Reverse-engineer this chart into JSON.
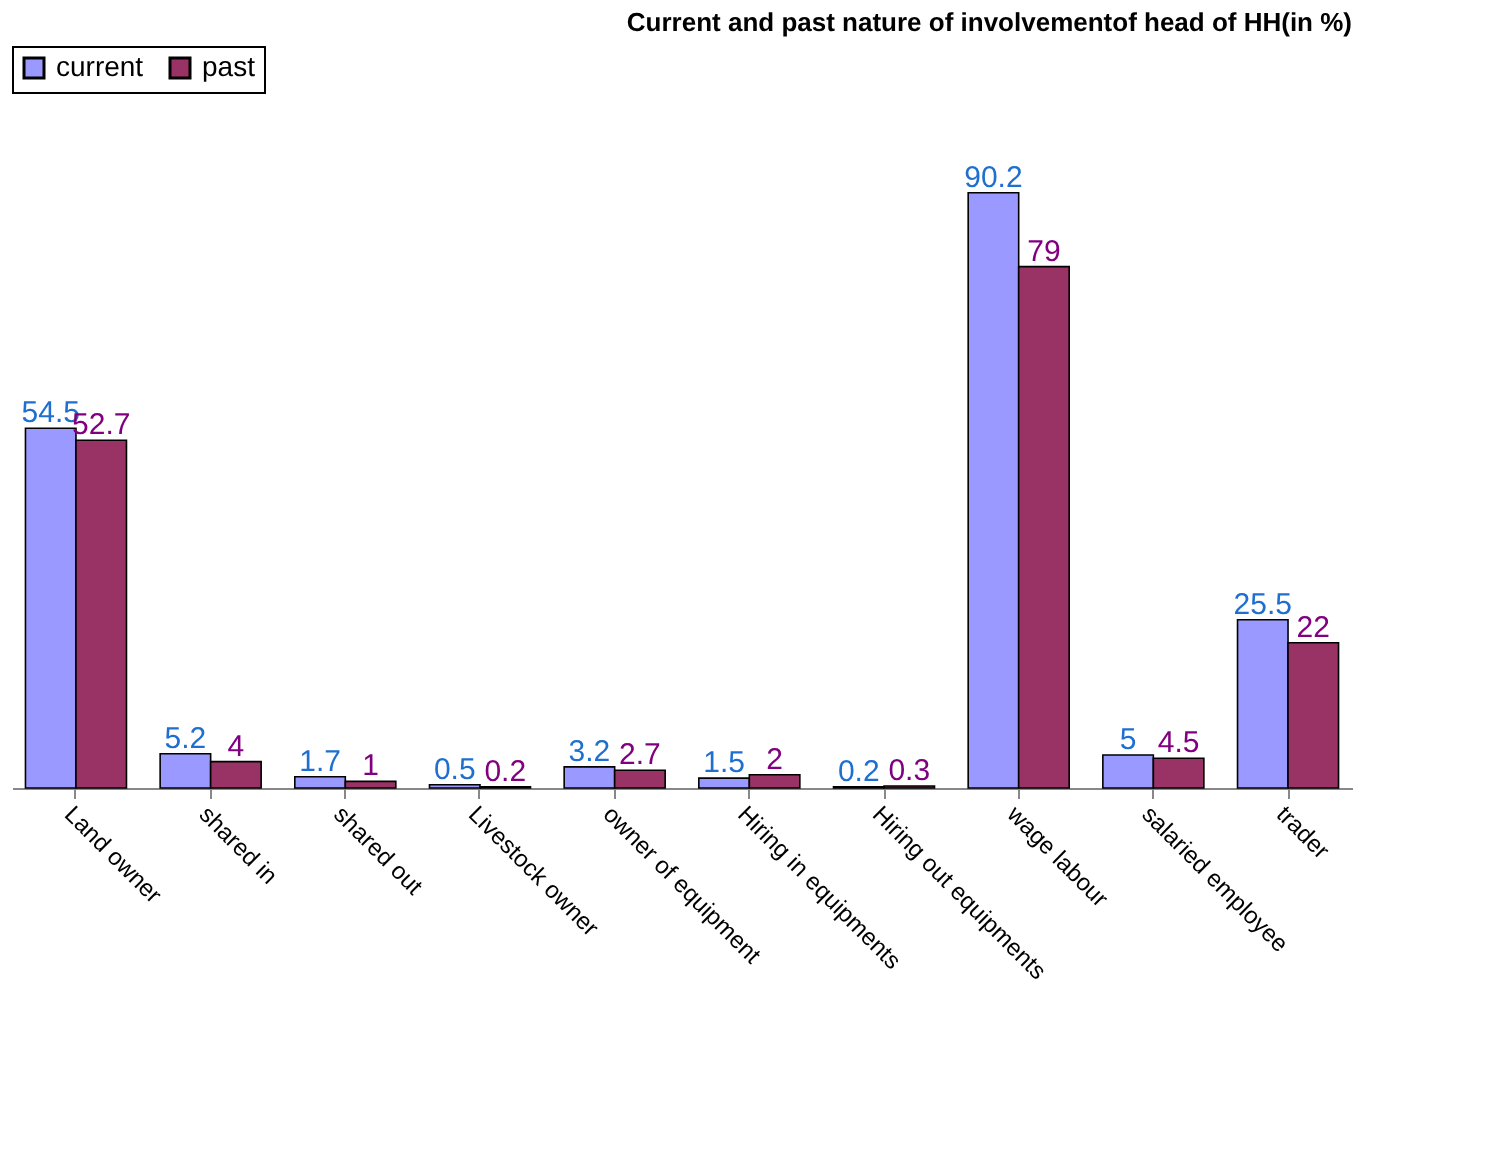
{
  "chart_data": {
    "type": "bar",
    "title": "Current and past nature of involvementof head of HH(in %)",
    "categories": [
      "Land owner",
      "shared in",
      "shared out",
      "Livestock owner",
      "owner of equipment",
      "Hiring in equipments",
      "Hiring out equipments",
      "wage labour",
      "salaried employee",
      "trader"
    ],
    "series": [
      {
        "name": "current",
        "color": "#9999ff",
        "values": [
          54.5,
          5.2,
          1.7,
          0.5,
          3.2,
          1.5,
          0.2,
          90.2,
          5,
          25.5
        ]
      },
      {
        "name": "past",
        "color": "#993366",
        "values": [
          52.7,
          4,
          1,
          0.2,
          2.7,
          2,
          0.3,
          79,
          4.5,
          22
        ]
      }
    ],
    "data_labels": true,
    "legend": "top",
    "tick_labels": "x",
    "grid": false
  }
}
